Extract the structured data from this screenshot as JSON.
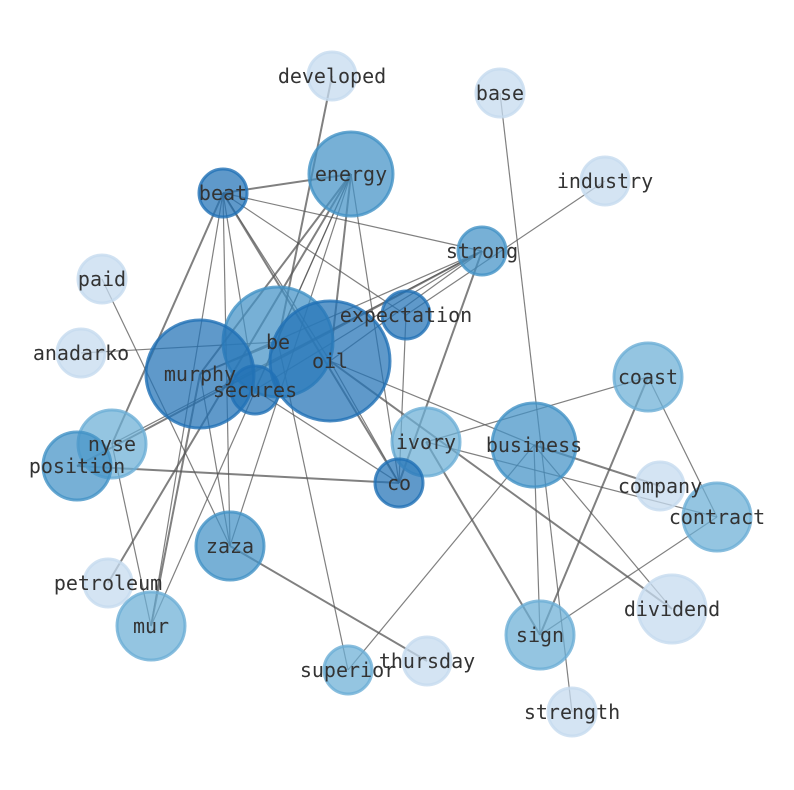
{
  "colors": {
    "light": "#c6dbef",
    "mid_light": "#6baed6",
    "mid": "#4292c6",
    "dark": "#2171b5",
    "edge": "#555555"
  },
  "nodes": [
    {
      "id": "developed",
      "level": "light"
    },
    {
      "id": "base",
      "level": "light"
    },
    {
      "id": "industry",
      "level": "light"
    },
    {
      "id": "energy",
      "level": "mid"
    },
    {
      "id": "beat",
      "level": "dark"
    },
    {
      "id": "strong",
      "level": "mid"
    },
    {
      "id": "paid",
      "level": "light"
    },
    {
      "id": "expectation",
      "level": "dark"
    },
    {
      "id": "be",
      "level": "mid"
    },
    {
      "id": "oil",
      "level": "dark"
    },
    {
      "id": "anadarko",
      "level": "light"
    },
    {
      "id": "murphy",
      "level": "dark"
    },
    {
      "id": "secures",
      "level": "dark"
    },
    {
      "id": "coast",
      "level": "mid_light"
    },
    {
      "id": "nyse",
      "level": "mid_light"
    },
    {
      "id": "ivory",
      "level": "mid_light"
    },
    {
      "id": "business",
      "level": "mid"
    },
    {
      "id": "position",
      "level": "mid"
    },
    {
      "id": "co",
      "level": "dark"
    },
    {
      "id": "company",
      "level": "light"
    },
    {
      "id": "contract",
      "level": "mid_light"
    },
    {
      "id": "zaza",
      "level": "mid"
    },
    {
      "id": "petroleum",
      "level": "light"
    },
    {
      "id": "dividend",
      "level": "light"
    },
    {
      "id": "mur",
      "level": "mid_light"
    },
    {
      "id": "sign",
      "level": "mid_light"
    },
    {
      "id": "superior",
      "level": "mid_light"
    },
    {
      "id": "thursday",
      "level": "light"
    },
    {
      "id": "strength",
      "level": "light"
    }
  ],
  "edges": [
    [
      "developed",
      "be"
    ],
    [
      "base",
      "strength"
    ],
    [
      "industry",
      "expectation"
    ],
    [
      "beat",
      "energy"
    ],
    [
      "beat",
      "strong"
    ],
    [
      "beat",
      "expectation"
    ],
    [
      "beat",
      "nyse"
    ],
    [
      "beat",
      "mur"
    ],
    [
      "beat",
      "secures"
    ],
    [
      "beat",
      "co"
    ],
    [
      "beat",
      "oil"
    ],
    [
      "beat",
      "zaza"
    ],
    [
      "energy",
      "murphy"
    ],
    [
      "energy",
      "secures"
    ],
    [
      "energy",
      "zaza"
    ],
    [
      "energy",
      "oil"
    ],
    [
      "energy",
      "co"
    ],
    [
      "energy",
      "mur"
    ],
    [
      "energy",
      "petroleum"
    ],
    [
      "strong",
      "murphy"
    ],
    [
      "strong",
      "nyse"
    ],
    [
      "strong",
      "co"
    ],
    [
      "strong",
      "secures"
    ],
    [
      "strong",
      "oil"
    ],
    [
      "strong",
      "position"
    ],
    [
      "paid",
      "zaza"
    ],
    [
      "anadarko",
      "be"
    ],
    [
      "murphy",
      "mur"
    ],
    [
      "murphy",
      "zaza"
    ],
    [
      "oil",
      "business"
    ],
    [
      "oil",
      "dividend"
    ],
    [
      "oil",
      "co"
    ],
    [
      "nyse",
      "mur"
    ],
    [
      "position",
      "co"
    ],
    [
      "secures",
      "co"
    ],
    [
      "ivory",
      "coast"
    ],
    [
      "ivory",
      "sign"
    ],
    [
      "ivory",
      "contract"
    ],
    [
      "business",
      "superior"
    ],
    [
      "business",
      "company"
    ],
    [
      "business",
      "dividend"
    ],
    [
      "business",
      "sign"
    ],
    [
      "coast",
      "sign"
    ],
    [
      "coast",
      "contract"
    ],
    [
      "contract",
      "sign"
    ],
    [
      "zaza",
      "thursday"
    ],
    [
      "be",
      "superior"
    ],
    [
      "expectation",
      "co"
    ],
    [
      "murphy",
      "be"
    ]
  ]
}
